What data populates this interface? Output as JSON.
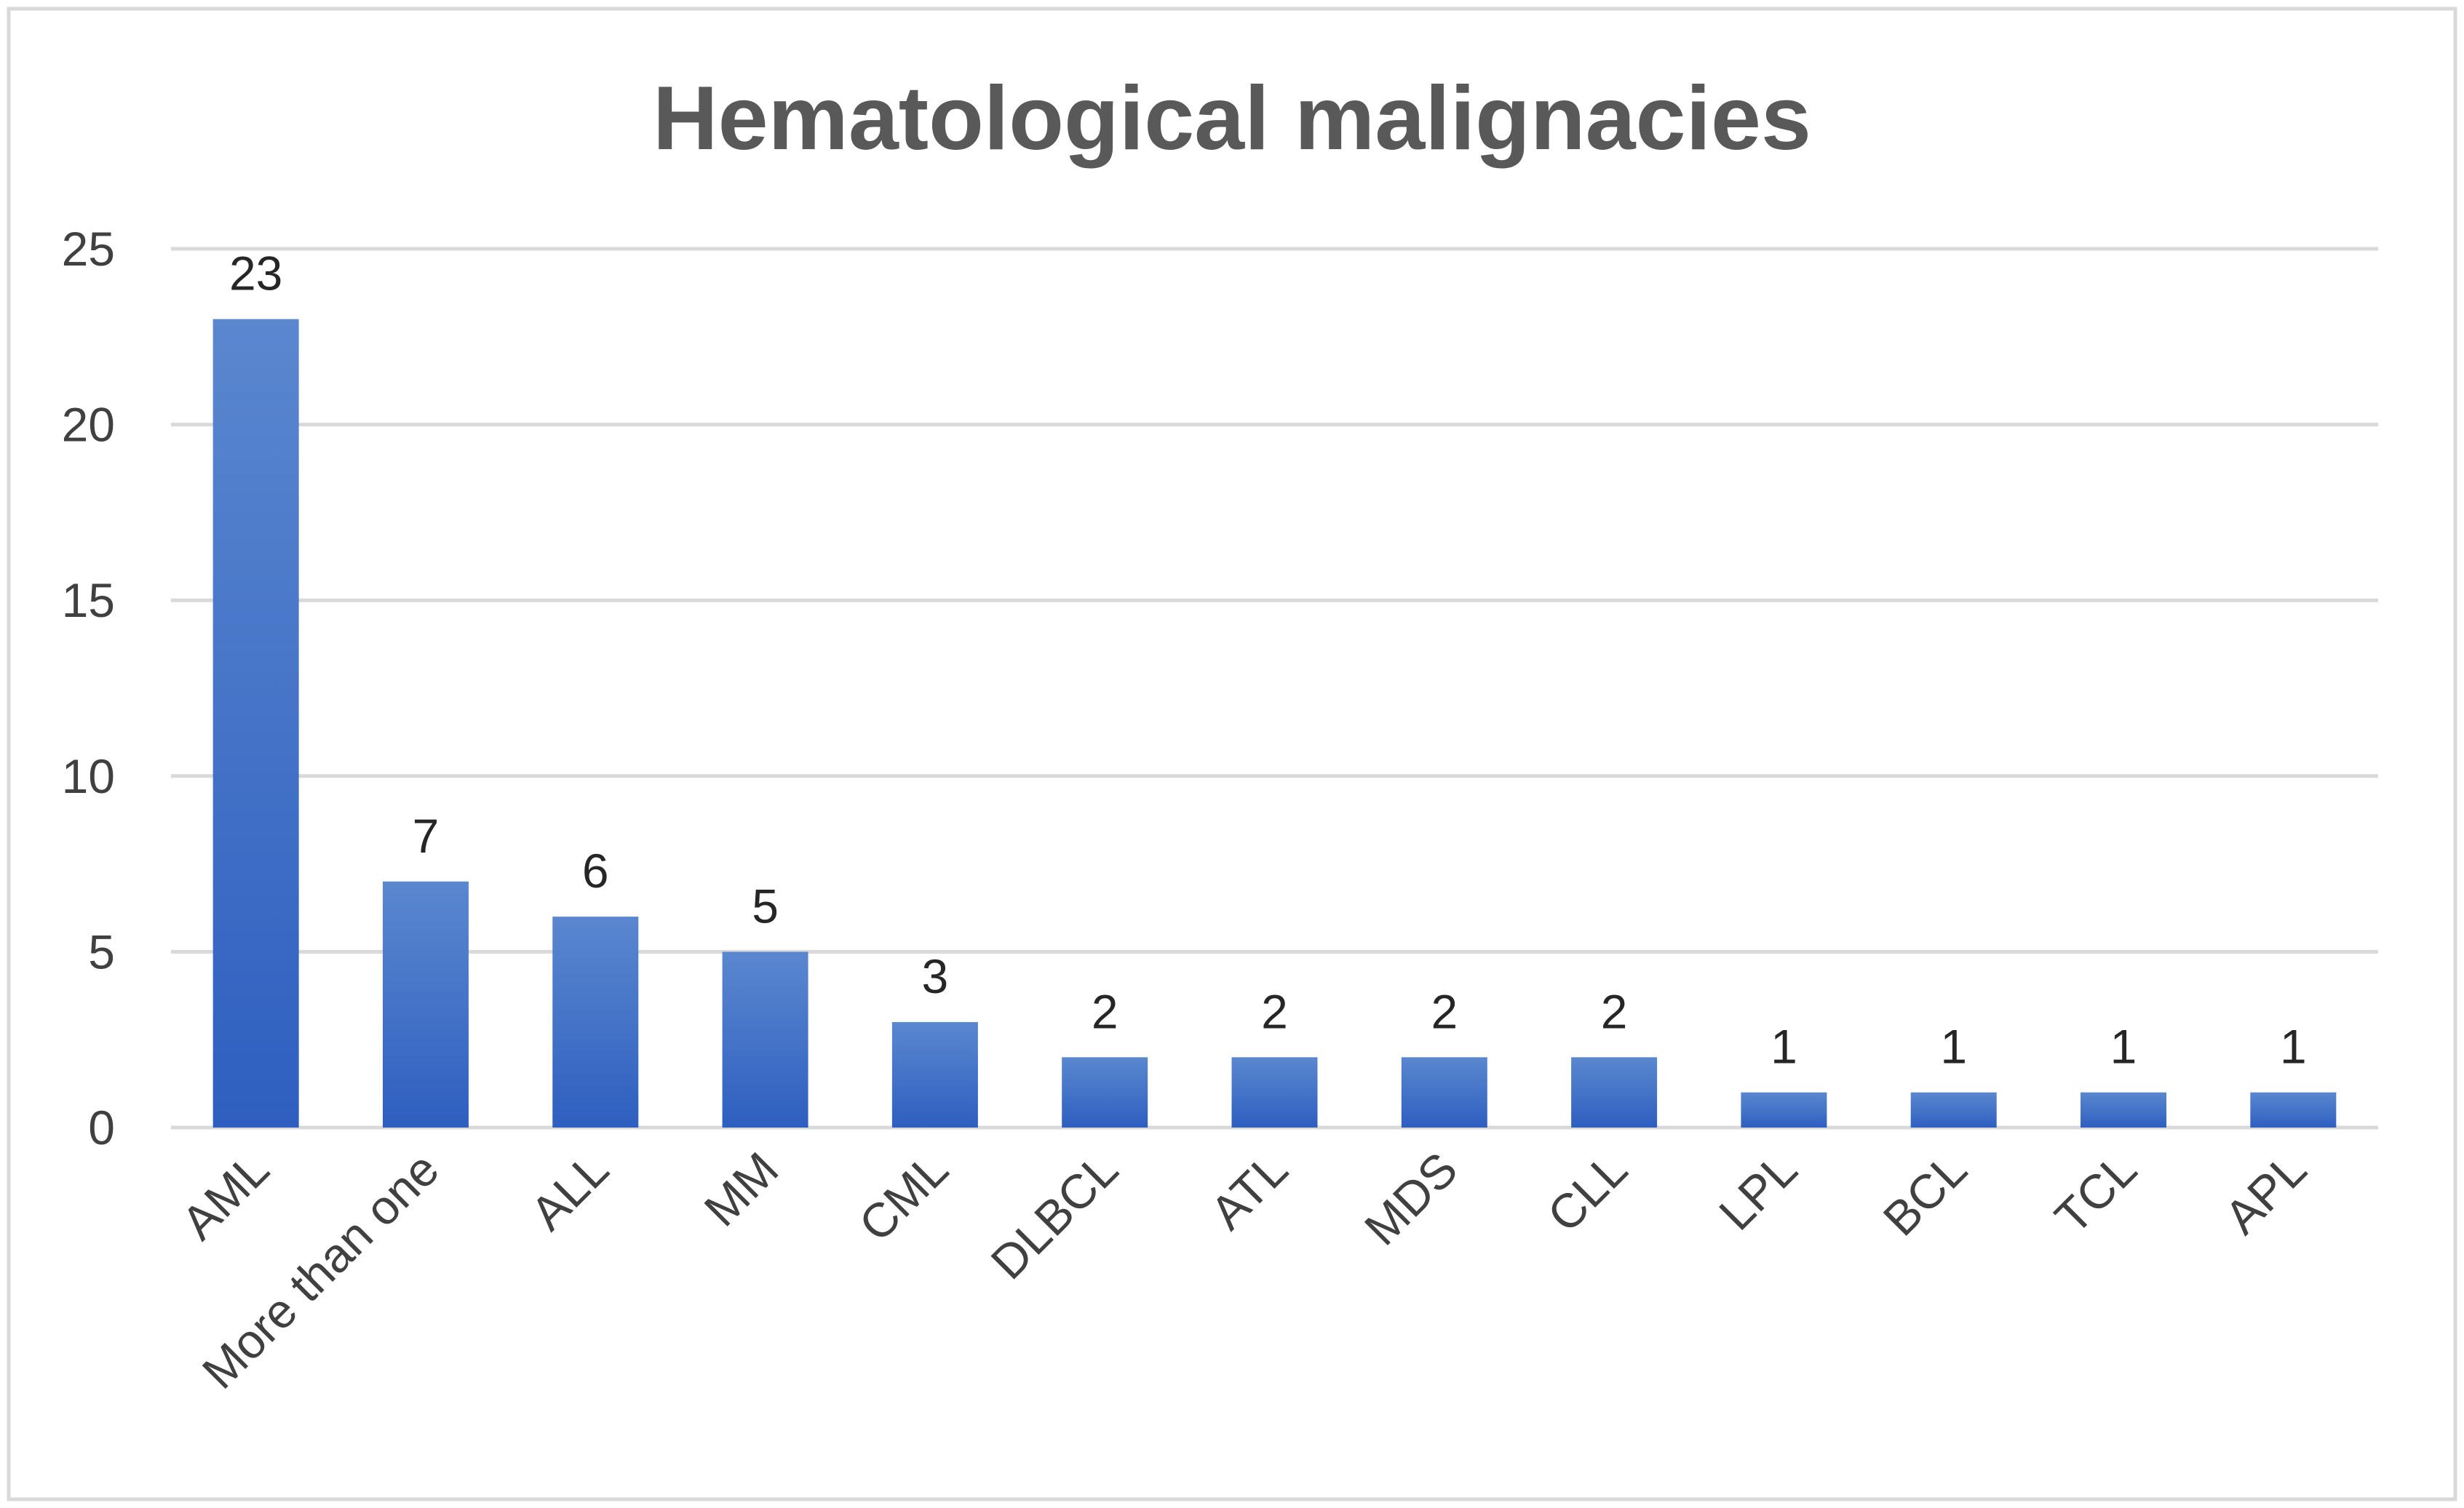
{
  "chart_data": {
    "type": "bar",
    "title": "Hematological malignacies",
    "xlabel": "",
    "ylabel": "",
    "categories": [
      "AML",
      "More than one",
      "ALL",
      "MM",
      "CML",
      "DLBCL",
      "ATL",
      "MDS",
      "CLL",
      "LPL",
      "BCL",
      "TCL",
      "APL"
    ],
    "values": [
      23,
      7,
      6,
      5,
      3,
      2,
      2,
      2,
      2,
      1,
      1,
      1,
      1
    ],
    "ylim": [
      0,
      25
    ],
    "yticks": [
      0,
      5,
      10,
      15,
      20,
      25
    ],
    "grid": true,
    "legend": "none",
    "data_labels": true,
    "colors": {
      "bar_top": "#5b87cf",
      "bar_bottom": "#2e5fc0",
      "grid": "#d9d9d9",
      "axis": "#d9d9d9",
      "frame": "#d9d9d9"
    }
  }
}
